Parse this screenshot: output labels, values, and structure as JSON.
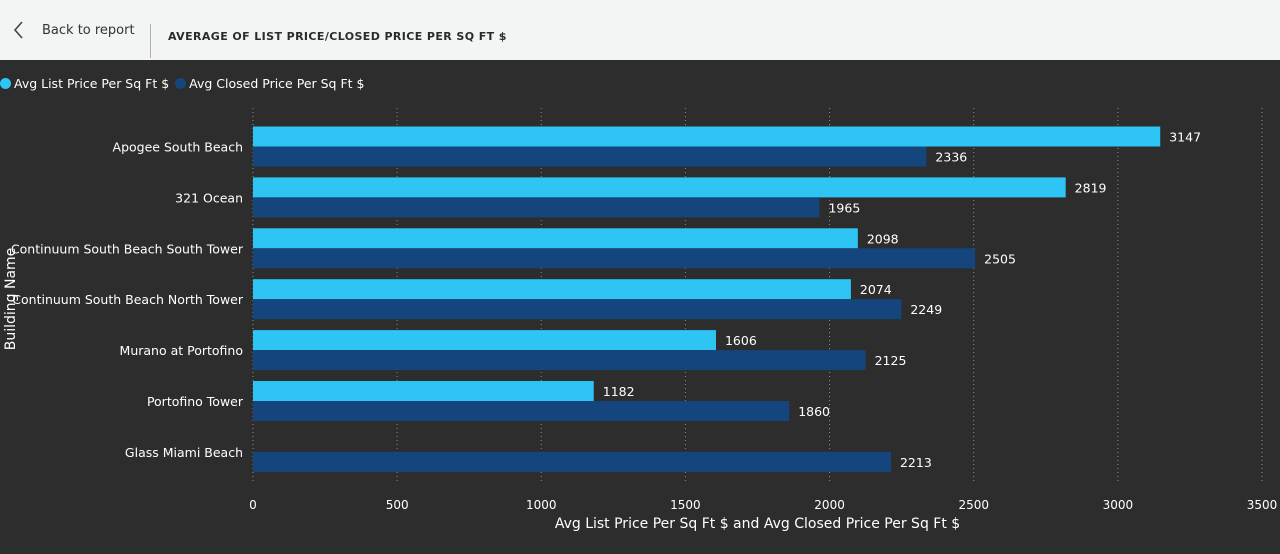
{
  "header": {
    "back_label": "Back to report",
    "title": "AVERAGE OF LIST PRICE/CLOSED PRICE PER SQ FT $"
  },
  "colors": {
    "list": "#2ec4f3",
    "closed": "#14467d",
    "background": "#2d2d2d",
    "topbar": "#f3f4f4"
  },
  "legend": {
    "items": [
      {
        "label": "Avg List Price Per Sq Ft $",
        "color": "#2ec4f3"
      },
      {
        "label": "Avg Closed Price Per Sq Ft $",
        "color": "#14467d"
      }
    ],
    "placement": "top-left"
  },
  "chart_data": {
    "type": "bar",
    "orientation": "horizontal",
    "title": "",
    "xlabel": "Avg List Price Per Sq Ft $ and Avg Closed Price Per Sq Ft $",
    "ylabel": "Building Name",
    "xlim": [
      0,
      3500
    ],
    "xticks": [
      0,
      500,
      1000,
      1500,
      2000,
      2500,
      3000,
      3500
    ],
    "grid": "vertical-dotted",
    "categories": [
      "Apogee South Beach",
      "321 Ocean",
      "Continuum South Beach South Tower",
      "Continuum South Beach North Tower",
      "Murano at Portofino",
      "Portofino Tower",
      "Glass Miami Beach"
    ],
    "series": [
      {
        "name": "Avg List Price Per Sq Ft $",
        "values": [
          3147,
          2819,
          2098,
          2074,
          1606,
          1182,
          null
        ]
      },
      {
        "name": "Avg Closed Price Per Sq Ft $",
        "values": [
          2336,
          1965,
          2505,
          2249,
          2125,
          1860,
          2213
        ]
      }
    ]
  }
}
